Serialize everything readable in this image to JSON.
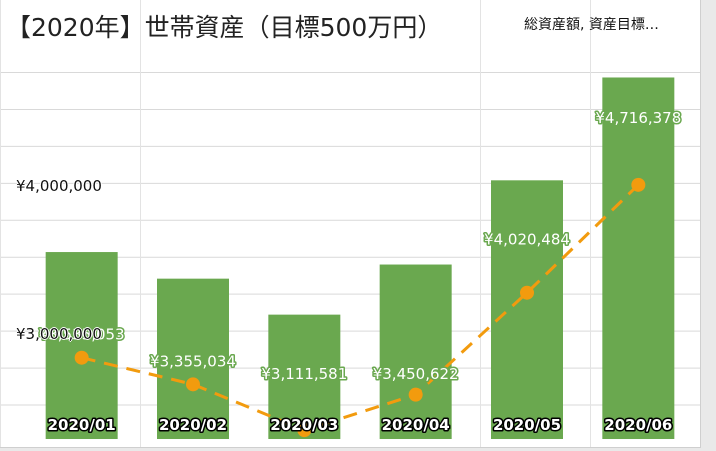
{
  "chart_data": {
    "type": "bar+line",
    "title": "【2020年】世帯資産（目標500万円）",
    "legend": "総資産額, 資産目標…",
    "categories": [
      "2020/01",
      "2020/02",
      "2020/03",
      "2020/04",
      "2020/05",
      "2020/06"
    ],
    "series": [
      {
        "kind": "bar",
        "values": [
          3535053,
          3355034,
          3111581,
          3450622,
          4020484,
          4716378
        ],
        "data_labels": [
          "¥3,535,053",
          "¥3,355,034",
          "¥3,111,581",
          "¥3,450,622",
          "¥4,020,484",
          "¥4,716,378"
        ]
      },
      {
        "kind": "line",
        "style": "dashed",
        "values": [
          2820000,
          2640000,
          2330000,
          2570000,
          3260000,
          3990000
        ]
      }
    ],
    "yticks": [
      {
        "value": 3000000,
        "label": "¥3,000,000"
      },
      {
        "value": 4000000,
        "label": "¥4,000,000"
      }
    ],
    "ylim": [
      2270000,
      4970000
    ],
    "grid": true,
    "legend_position": "top-right",
    "colors": {
      "bar": "#6aa84f",
      "line": "#f29b0e",
      "grid": "#d9d9d9"
    }
  }
}
